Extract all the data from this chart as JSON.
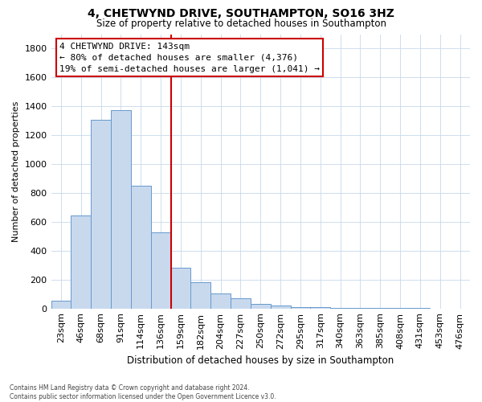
{
  "title": "4, CHETWYND DRIVE, SOUTHAMPTON, SO16 3HZ",
  "subtitle": "Size of property relative to detached houses in Southampton",
  "xlabel": "Distribution of detached houses by size in Southampton",
  "ylabel": "Number of detached properties",
  "bar_color": "#c8d9ee",
  "bar_edge_color": "#6699cc",
  "categories": [
    "23sqm",
    "46sqm",
    "68sqm",
    "91sqm",
    "114sqm",
    "136sqm",
    "159sqm",
    "182sqm",
    "204sqm",
    "227sqm",
    "250sqm",
    "272sqm",
    "295sqm",
    "317sqm",
    "340sqm",
    "363sqm",
    "385sqm",
    "408sqm",
    "431sqm",
    "453sqm",
    "476sqm"
  ],
  "values": [
    55,
    645,
    1305,
    1375,
    850,
    530,
    280,
    180,
    105,
    68,
    30,
    20,
    10,
    8,
    5,
    4,
    3,
    2,
    2,
    1,
    1
  ],
  "ylim": [
    0,
    1900
  ],
  "yticks": [
    0,
    200,
    400,
    600,
    800,
    1000,
    1200,
    1400,
    1600,
    1800
  ],
  "vline_x": 5.5,
  "vline_color": "#cc0000",
  "annotation_title": "4 CHETWYND DRIVE: 143sqm",
  "annotation_line1": "← 80% of detached houses are smaller (4,376)",
  "annotation_line2": "19% of semi-detached houses are larger (1,041) →",
  "annotation_box_color": "#ffffff",
  "annotation_box_edge": "#cc0000",
  "footer_line1": "Contains HM Land Registry data © Crown copyright and database right 2024.",
  "footer_line2": "Contains public sector information licensed under the Open Government Licence v3.0.",
  "background_color": "#ffffff",
  "grid_color": "#c8d8eb"
}
